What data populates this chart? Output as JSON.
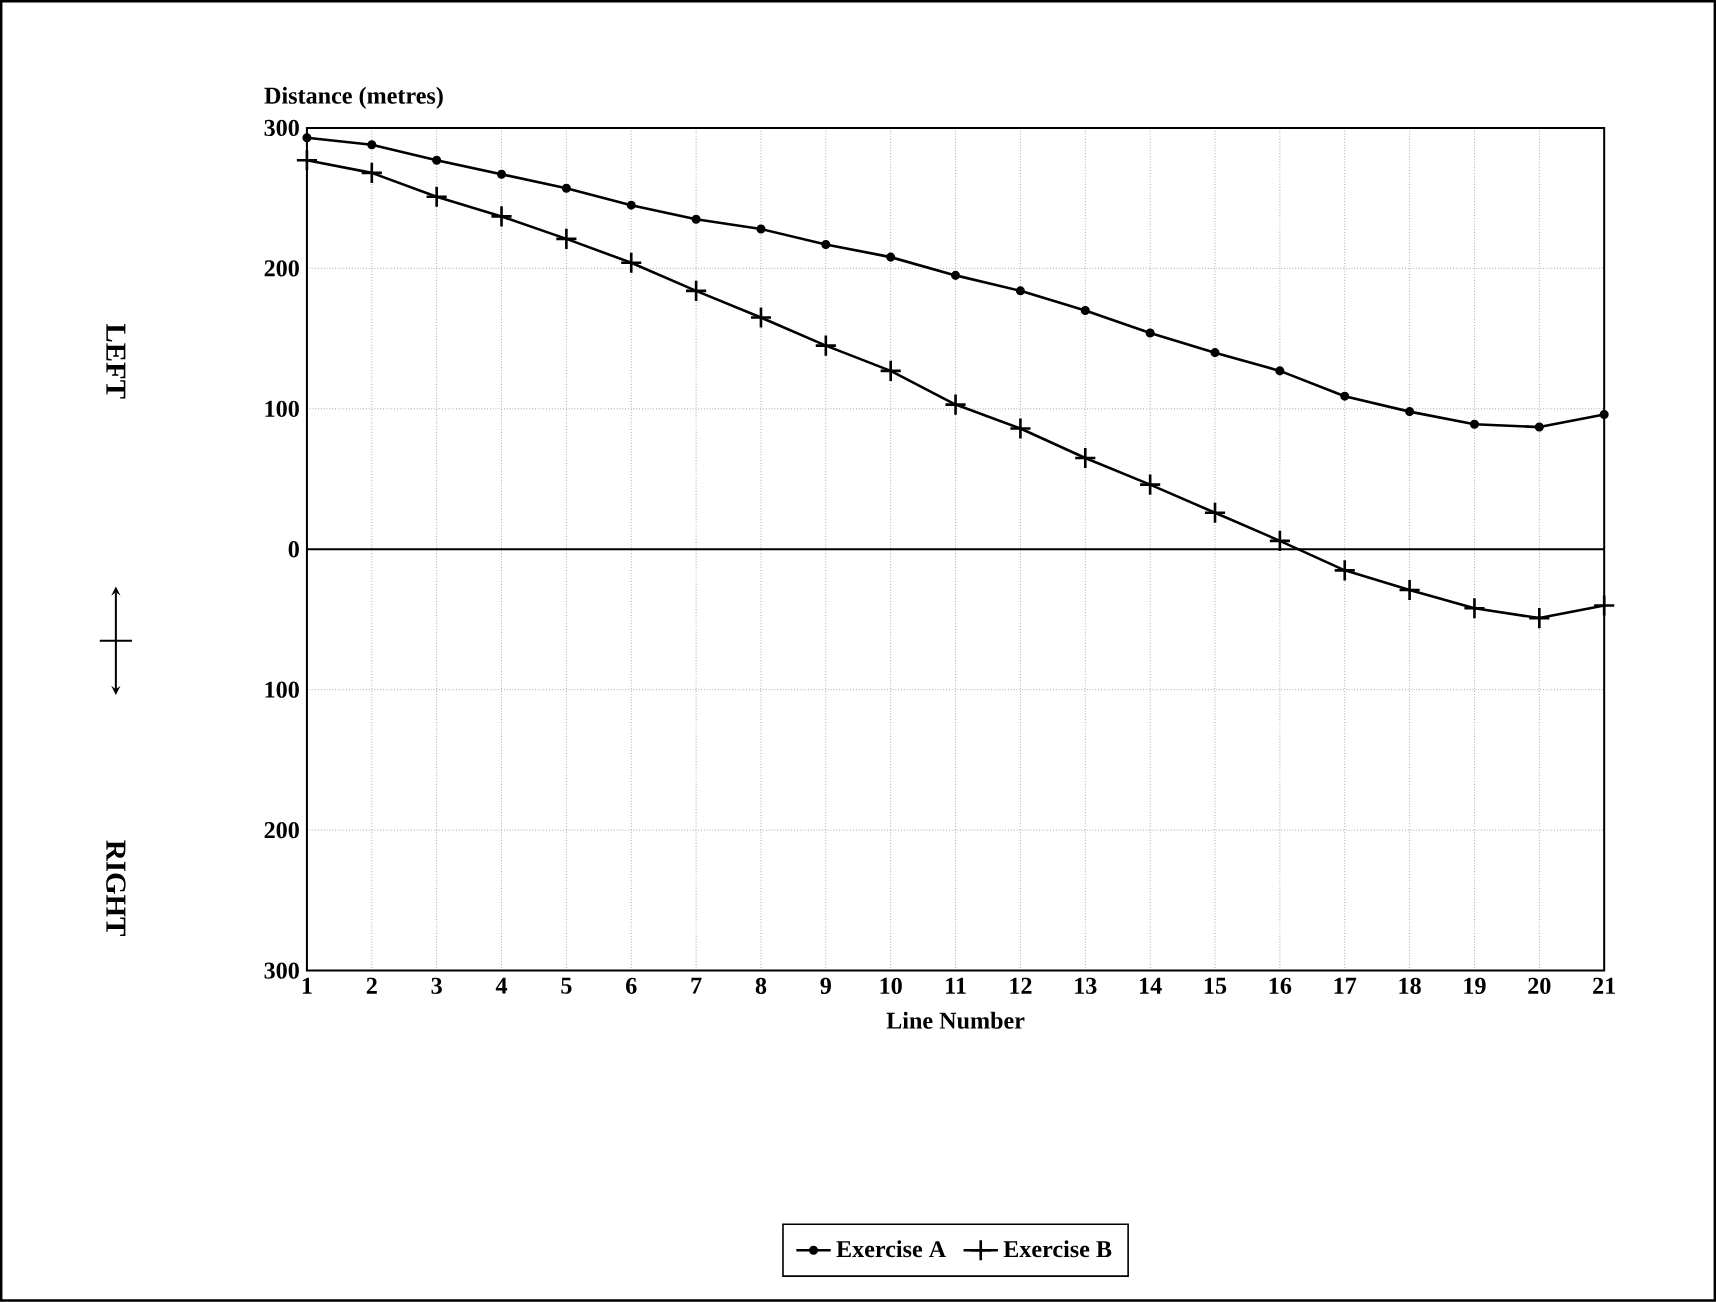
{
  "chart_data": {
    "type": "line",
    "xlabel": "Line Number",
    "ylabel": "Distance (metres)",
    "x": [
      1,
      2,
      3,
      4,
      5,
      6,
      7,
      8,
      9,
      10,
      11,
      12,
      13,
      14,
      15,
      16,
      17,
      18,
      19,
      20,
      21
    ],
    "series": [
      {
        "name": "Exercise A",
        "color": "#000000",
        "marker": "circle",
        "values": [
          293,
          288,
          277,
          267,
          257,
          245,
          235,
          228,
          217,
          208,
          195,
          184,
          170,
          154,
          140,
          127,
          109,
          98,
          89,
          87,
          96
        ]
      },
      {
        "name": "Exercise B",
        "color": "#000000",
        "marker": "cross",
        "values": [
          277,
          268,
          251,
          237,
          221,
          204,
          184,
          165,
          145,
          127,
          103,
          86,
          65,
          46,
          26,
          6,
          -15,
          -29,
          -42,
          -49,
          -40
        ]
      }
    ],
    "xlim": [
      1,
      21
    ],
    "xticks": [
      1,
      2,
      3,
      4,
      5,
      6,
      7,
      8,
      9,
      10,
      11,
      12,
      13,
      14,
      15,
      16,
      17,
      18,
      19,
      20,
      21
    ],
    "ylim": [
      -300,
      300
    ],
    "yticks": [
      {
        "value": -300,
        "label": "300"
      },
      {
        "value": -200,
        "label": "200"
      },
      {
        "value": -100,
        "label": "100"
      },
      0,
      100,
      200,
      300
    ],
    "ref_lines": [
      {
        "axis": "y",
        "value": 0
      }
    ],
    "annotations": [
      "LEFT",
      "RIGHT"
    ],
    "grid": true,
    "legend": "bottom",
    "line_style": "solid"
  }
}
